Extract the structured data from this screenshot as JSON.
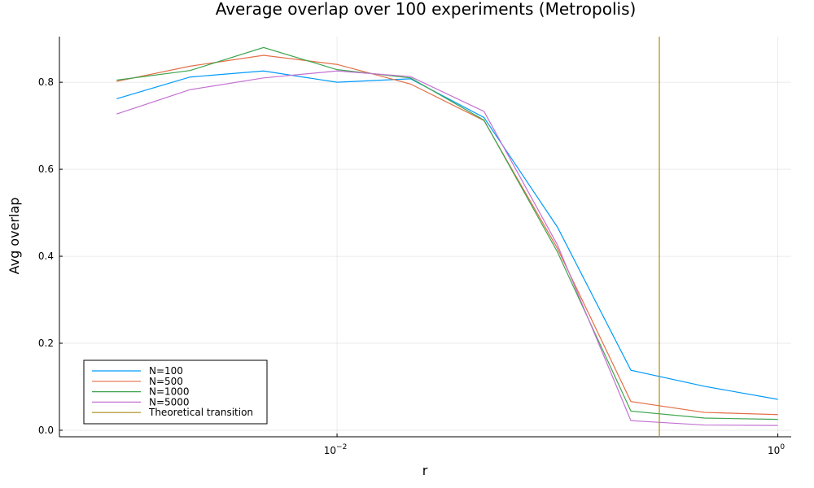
{
  "chart_data": {
    "type": "line",
    "title": "Average overlap over 100 experiments (Metropolis)",
    "xlabel": "r",
    "ylabel": "Avg overlap",
    "xscale": "log10",
    "xlim": [
      0.00055,
      1.15
    ],
    "ylim": [
      -0.015,
      0.905
    ],
    "grid": true,
    "legend_position": "bottom-left",
    "x": [
      0.001,
      0.0021544,
      0.0046416,
      0.01,
      0.021544,
      0.046416,
      0.1,
      0.21544,
      0.46416,
      1.0
    ],
    "x_ticks": [
      {
        "value": 0.01,
        "base": "10",
        "exp": "−2"
      },
      {
        "value": 1.0,
        "base": "10",
        "exp": "0"
      }
    ],
    "y_ticks": [
      {
        "value": 0.0,
        "label": "0.0"
      },
      {
        "value": 0.2,
        "label": "0.2"
      },
      {
        "value": 0.4,
        "label": "0.4"
      },
      {
        "value": 0.6,
        "label": "0.6"
      },
      {
        "value": 0.8,
        "label": "0.8"
      }
    ],
    "series": [
      {
        "name": "N=100",
        "color": "#009AFA",
        "values": [
          0.762,
          0.812,
          0.826,
          0.8,
          0.808,
          0.719,
          0.467,
          0.138,
          0.101,
          0.071
        ]
      },
      {
        "name": "N=500",
        "color": "#E36F47",
        "values": [
          0.802,
          0.837,
          0.862,
          0.841,
          0.796,
          0.712,
          0.418,
          0.066,
          0.041,
          0.036
        ]
      },
      {
        "name": "N=1000",
        "color": "#3EA44E",
        "values": [
          0.805,
          0.827,
          0.88,
          0.829,
          0.81,
          0.713,
          0.41,
          0.044,
          0.028,
          0.025
        ]
      },
      {
        "name": "N=5000",
        "color": "#C371D2",
        "values": [
          0.727,
          0.783,
          0.81,
          0.826,
          0.813,
          0.733,
          0.426,
          0.022,
          0.012,
          0.011
        ]
      }
    ],
    "vline": {
      "name": "Theoretical transition",
      "color": "#AC8D18",
      "x": 0.29
    }
  }
}
